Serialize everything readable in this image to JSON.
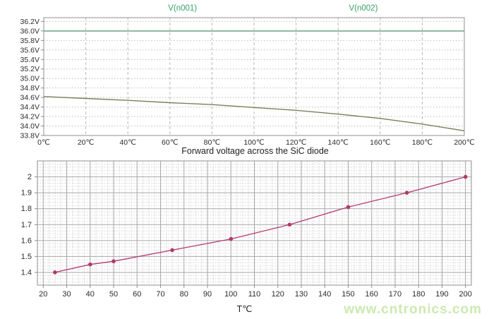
{
  "page": {
    "watermark": "www.cntronics.com"
  },
  "chart_data": [
    {
      "type": "line",
      "id": "voltage-vs-temperature",
      "legend": {
        "position": "top",
        "entries": [
          {
            "label": "V(n001)",
            "color": "#3aa066"
          },
          {
            "label": "V(n002)",
            "color": "#3aa066"
          }
        ]
      },
      "x": [
        0,
        20,
        40,
        60,
        80,
        100,
        120,
        140,
        160,
        180,
        200
      ],
      "series": [
        {
          "name": "V(n001)",
          "color": "#5d9c79",
          "values": [
            36.0,
            36.0,
            36.0,
            36.0,
            36.0,
            36.0,
            36.0,
            36.0,
            36.0,
            36.0,
            36.0
          ]
        },
        {
          "name": "V(n002)",
          "color": "#7e7e5b",
          "values": [
            34.62,
            34.58,
            34.54,
            34.49,
            34.45,
            34.39,
            34.33,
            34.25,
            34.16,
            34.04,
            33.9
          ]
        }
      ],
      "x_ticks": [
        0,
        20,
        40,
        60,
        80,
        100,
        120,
        140,
        160,
        180,
        200
      ],
      "x_tick_suffix": "℃",
      "y_ticks": [
        36.2,
        36.0,
        35.8,
        35.6,
        35.4,
        35.2,
        35.0,
        34.8,
        34.6,
        34.4,
        34.2,
        34.0,
        33.8
      ],
      "y_tick_suffix": "V",
      "xlim": [
        0,
        200
      ],
      "ylim": [
        33.8,
        36.28
      ],
      "grid": "dashed",
      "legend_top": true
    },
    {
      "type": "line",
      "id": "forward-voltage",
      "title": "Forward voltage across the SiC diode",
      "xlabel": "T℃",
      "series": [
        {
          "name": "forward-voltage",
          "color": "#b0396c",
          "marker": "circle",
          "points": [
            [
              25,
              1.4
            ],
            [
              40,
              1.45
            ],
            [
              50,
              1.47
            ],
            [
              75,
              1.54
            ],
            [
              100,
              1.61
            ],
            [
              125,
              1.7
            ],
            [
              150,
              1.81
            ],
            [
              175,
              1.9
            ],
            [
              200,
              2.0
            ]
          ]
        }
      ],
      "x_ticks": [
        20,
        30,
        40,
        50,
        60,
        70,
        80,
        90,
        100,
        110,
        120,
        130,
        140,
        150,
        160,
        170,
        180,
        190,
        200
      ],
      "y_ticks": [
        1.4,
        1.5,
        1.6,
        1.7,
        1.8,
        1.9,
        2
      ],
      "xlim": [
        17.5,
        202.5
      ],
      "ylim": [
        1.32,
        2.1
      ],
      "minor_x_step": 2.5,
      "minor_y_step": 0.02,
      "grid": "fine-mesh"
    }
  ]
}
